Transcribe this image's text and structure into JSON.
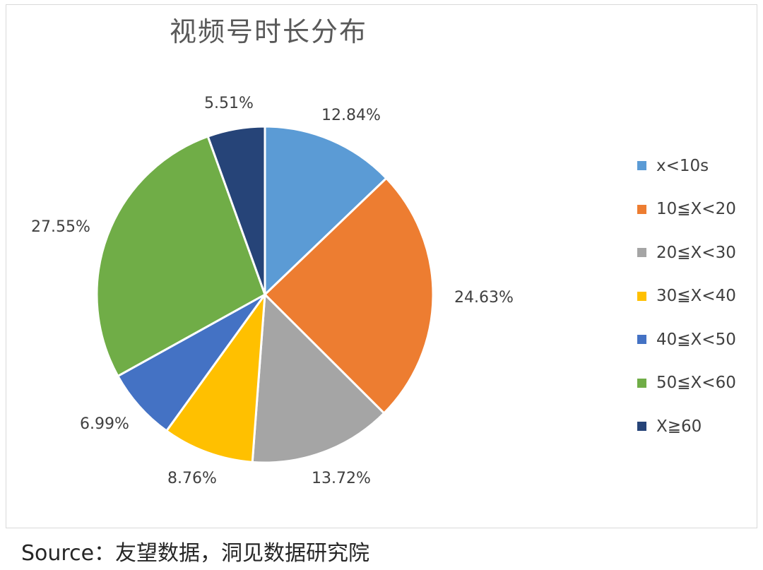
{
  "chart_data": {
    "type": "pie",
    "title": "视频号时长分布",
    "categories": [
      "x<10s",
      "10≦X<20",
      "20≦X<30",
      "30≦X<40",
      "40≦X<50",
      "50≦X<60",
      "X≧60"
    ],
    "values": [
      12.84,
      24.63,
      13.72,
      8.76,
      6.99,
      27.55,
      5.51
    ],
    "value_labels": [
      "12.84%",
      "24.63%",
      "13.72%",
      "8.76%",
      "6.99%",
      "27.55%",
      "5.51%"
    ],
    "colors": [
      "#5B9BD5",
      "#ED7D31",
      "#A5A5A5",
      "#FFC000",
      "#4472C4",
      "#70AD47",
      "#264478"
    ],
    "legend_position": "right",
    "start_angle": "12 o'clock",
    "direction": "clockwise"
  },
  "source": "Source：友望数据，洞见数据研究院"
}
